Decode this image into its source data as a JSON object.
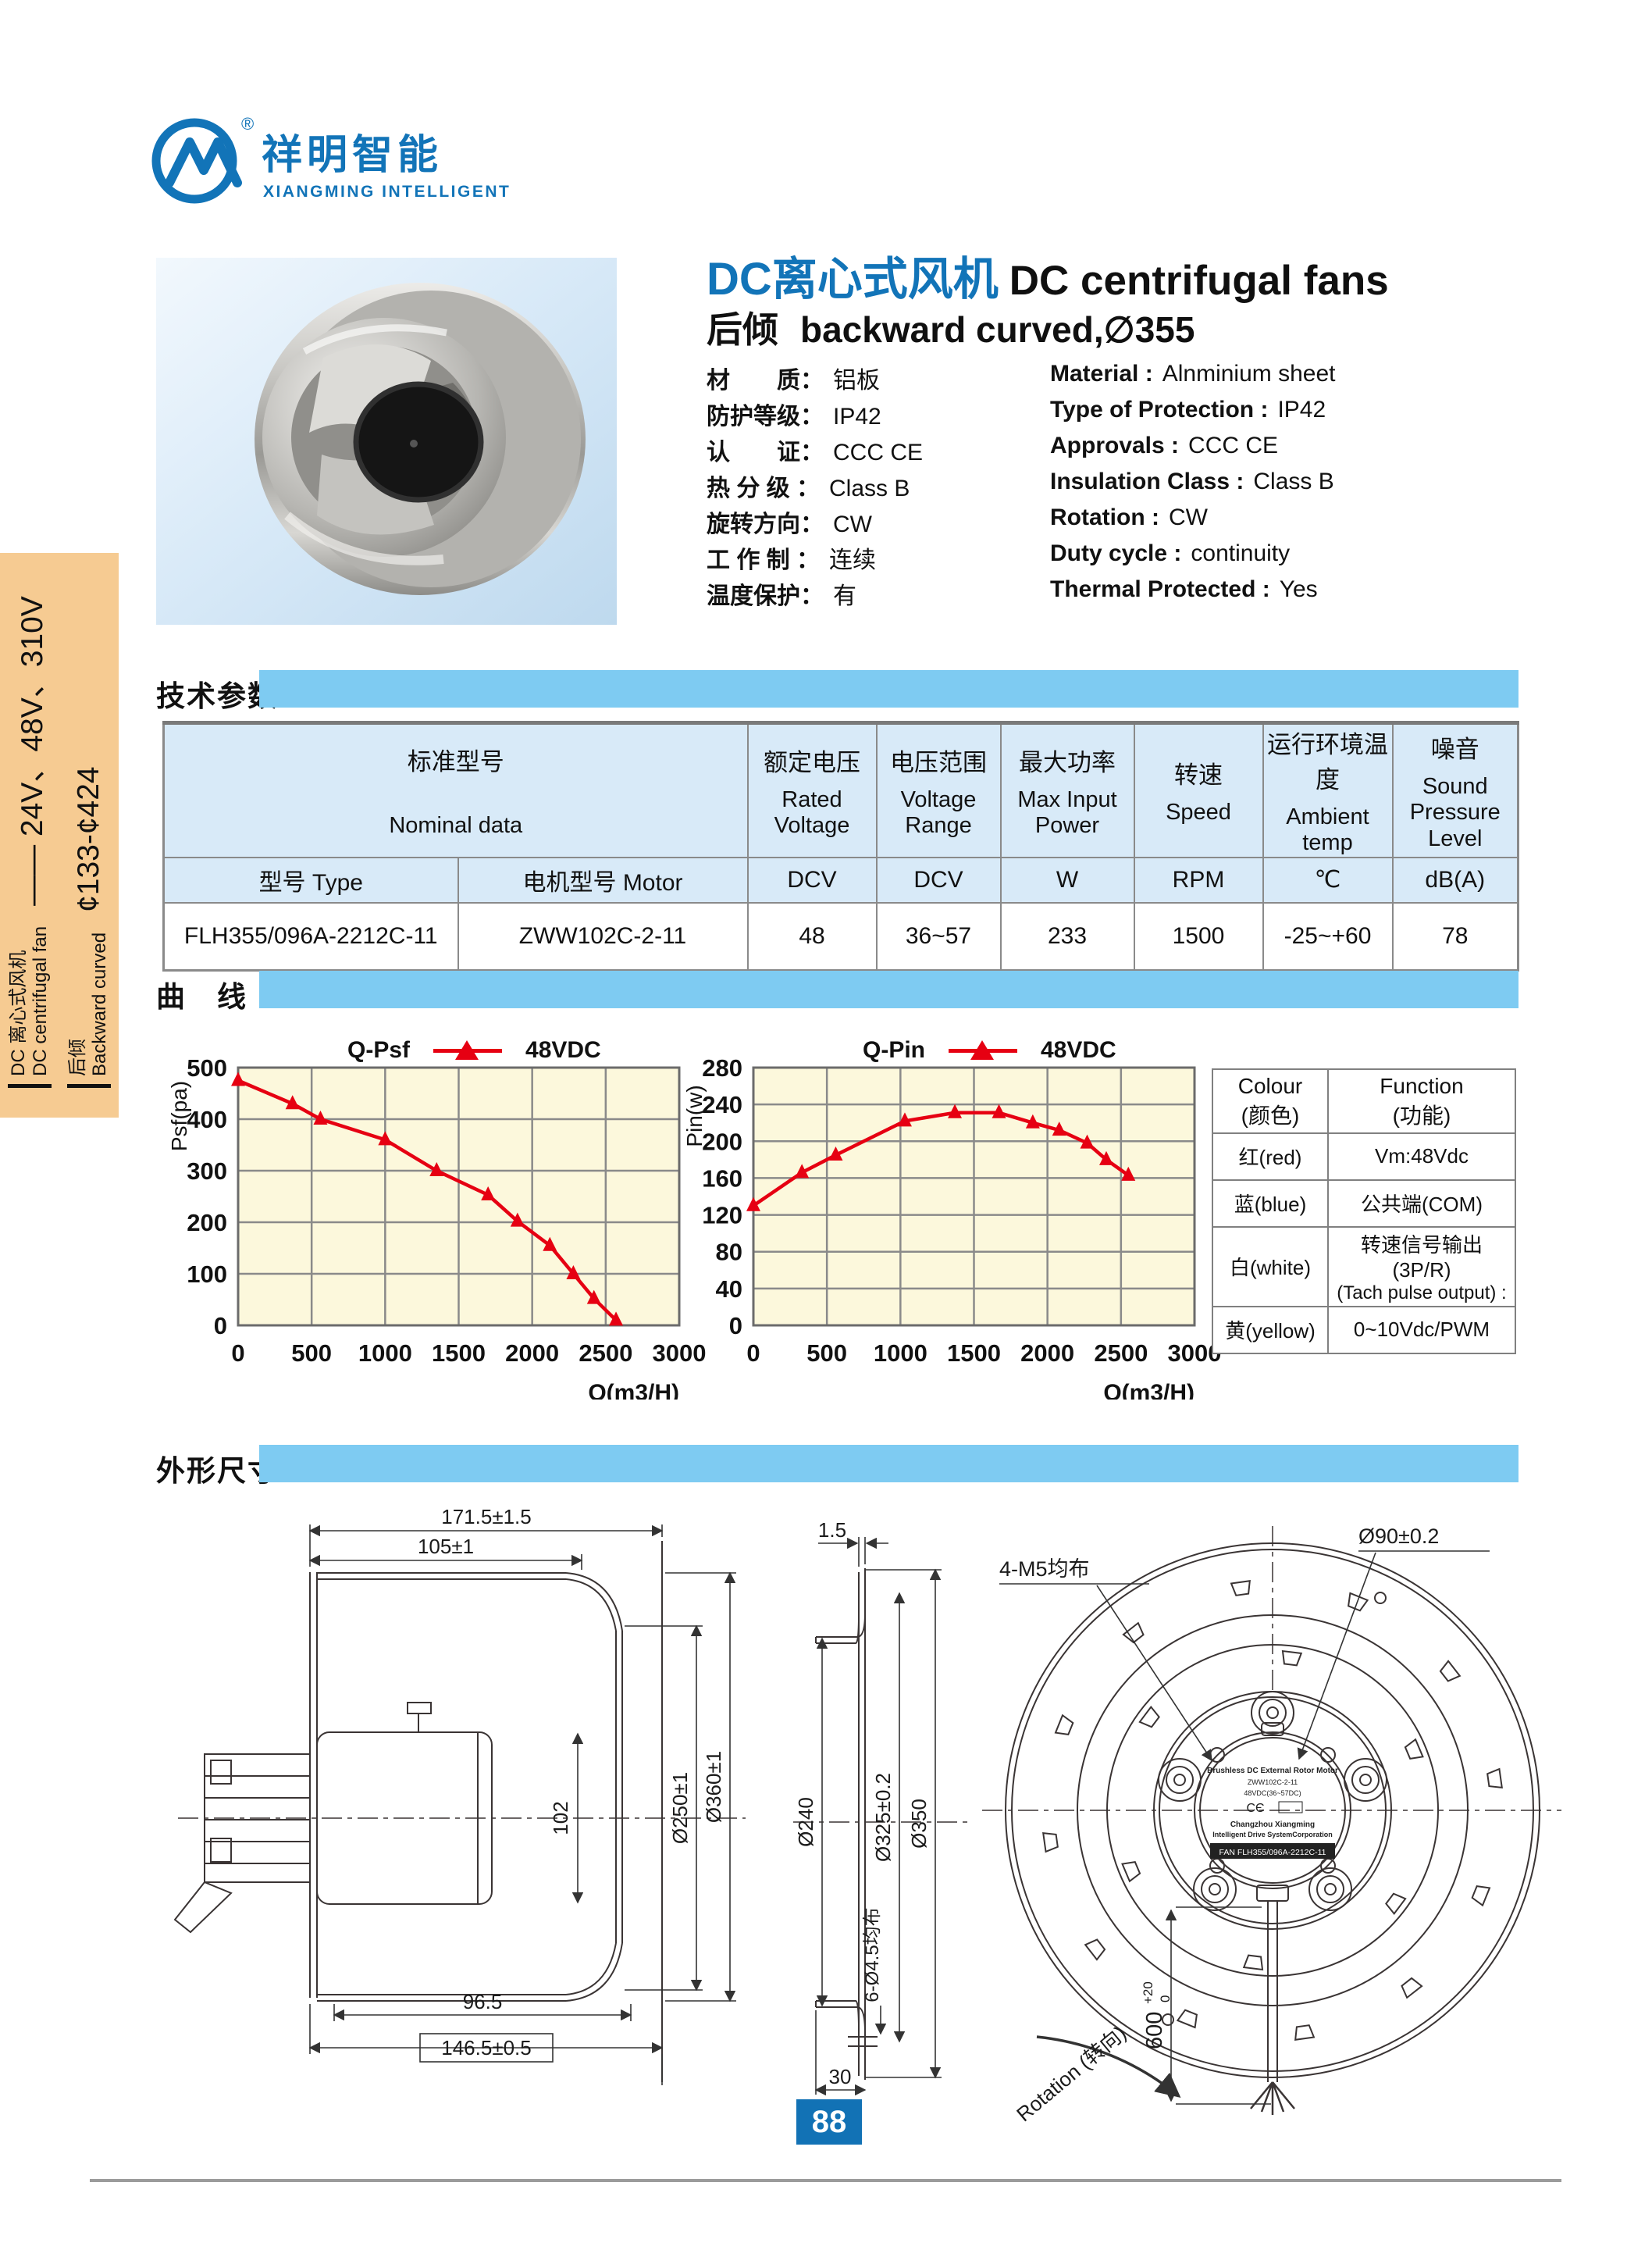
{
  "colors": {
    "accent_blue": "#1274b8",
    "bar_blue": "#7ecbf2",
    "table_header_bg": "#d8eaf8",
    "chart_bg": "#fcf8dc",
    "series_red": "#e60012",
    "sidebar_bg": "#f6cb92",
    "page_box_blue": "#1272b5"
  },
  "logo": {
    "brand_cn": "祥明智能",
    "brand_en": "XIANGMING INTELLIGENT",
    "reg": "®"
  },
  "sidebar": {
    "group1_cn": "DC 离心式风机",
    "group1_en": "DC centrifugal fan",
    "group1_value": "—— 24V、48V、310V",
    "group2_cn": "后倾",
    "group2_en": "Backward curved",
    "group2_value": "¢133-¢424"
  },
  "header": {
    "title_cn": "DC离心式风机",
    "title_en": "DC centrifugal fans",
    "subtitle_cn": "后倾",
    "subtitle_en": "backward curved,∅355"
  },
  "specs": {
    "rows": [
      {
        "cn": "材　　质：",
        "cnv": "铝板",
        "en": "Material :",
        "env": "Alnminium sheet"
      },
      {
        "cn": "防护等级：",
        "cnv": "IP42",
        "en": "Type of Protection :",
        "env": "IP42"
      },
      {
        "cn": "认　　证：",
        "cnv": "CCC CE",
        "en": "Approvals :",
        "env": "CCC CE"
      },
      {
        "cn": "热 分 级 ：",
        "cnv": "Class B",
        "en": "Insulation Class :",
        "env": "Class B"
      },
      {
        "cn": "旋转方向：",
        "cnv": "CW",
        "en": "Rotation :",
        "env": "CW"
      },
      {
        "cn": "工 作 制 ：",
        "cnv": "连续",
        "en": "Duty cycle :",
        "env": "continuity"
      },
      {
        "cn": "温度保护：",
        "cnv": "有",
        "en": "Thermal Protected :",
        "env": "Yes"
      }
    ]
  },
  "sections": {
    "tech": "技术参数",
    "curves": "曲　线",
    "dims": "外形尺寸"
  },
  "table": {
    "nominal_cn": "标准型号",
    "nominal_en": "Nominal data",
    "cols": [
      {
        "cn": "额定电压",
        "en": "Rated Voltage",
        "unit": "DCV"
      },
      {
        "cn": "电压范围",
        "en": "Voltage Range",
        "unit": "DCV"
      },
      {
        "cn": "最大功率",
        "en": "Max Input Power",
        "unit": "W"
      },
      {
        "cn": "转速",
        "en": "Speed",
        "unit": "RPM"
      },
      {
        "cn": "运行环境温度",
        "en": "Ambient temp",
        "unit": "℃"
      },
      {
        "cn": "噪音",
        "en": "Sound Pressure Level",
        "unit": "dB(A)"
      }
    ],
    "type_header": "型号 Type",
    "motor_header": "电机型号 Motor",
    "row": {
      "type": "FLH355/096A-2212C-11",
      "motor": "ZWW102C-2-11",
      "values": [
        "48",
        "36~57",
        "233",
        "1500",
        "-25~+60",
        "78"
      ]
    }
  },
  "chart_data": [
    {
      "type": "line",
      "title": "Q-Psf",
      "legend": "48VDC",
      "xlabel": "Q(m3/H)",
      "ylabel": "Psf(pa)",
      "xlim": [
        0,
        3000
      ],
      "ylim": [
        0,
        500
      ],
      "xticks": [
        0,
        500,
        1000,
        1500,
        2000,
        2500,
        3000
      ],
      "yticks": [
        0,
        100,
        200,
        300,
        400,
        500
      ],
      "x": [
        0,
        370,
        560,
        1000,
        1350,
        1700,
        1900,
        2120,
        2280,
        2420,
        2570
      ],
      "y": [
        475,
        430,
        400,
        360,
        300,
        253,
        202,
        155,
        100,
        52,
        10
      ],
      "grid": true,
      "legend_position": "top"
    },
    {
      "type": "line",
      "title": "Q-Pin",
      "legend": "48VDC",
      "xlabel": "Q(m3/H)",
      "ylabel": "Pin(w)",
      "xlim": [
        0,
        3000
      ],
      "ylim": [
        0,
        280
      ],
      "xticks": [
        0,
        500,
        1000,
        1500,
        2000,
        2500,
        3000
      ],
      "yticks": [
        0,
        40,
        80,
        120,
        160,
        200,
        240,
        280
      ],
      "x": [
        0,
        330,
        560,
        1030,
        1370,
        1670,
        1900,
        2080,
        2270,
        2400,
        2550
      ],
      "y": [
        130,
        166,
        185,
        222,
        231,
        231,
        220,
        212,
        198,
        180,
        163
      ],
      "grid": true,
      "legend_position": "top"
    }
  ],
  "wire_table": {
    "col1_header_top": "Colour",
    "col1_header_bottom": "(颜色)",
    "col2_header_top": "Function",
    "col2_header_bottom": "(功能)",
    "rows": [
      {
        "colour": "红(red)",
        "fn1": "Vm:48Vdc",
        "fn2": ""
      },
      {
        "colour": "蓝(blue)",
        "fn1": "公共端(COM)",
        "fn2": ""
      },
      {
        "colour": "白(white)",
        "fn1": "转速信号输出(3P/R)",
        "fn2": "(Tach pulse output) :"
      },
      {
        "colour": "黄(yellow)",
        "fn1": "0~10Vdc/PWM",
        "fn2": ""
      }
    ]
  },
  "drawing": {
    "left": {
      "d_total": "171.5±1.5",
      "d_inner": "105±1",
      "d_hub": "102",
      "d_d250": "Ø250±1",
      "d_d360": "Ø360±1",
      "d_back": "96.5",
      "d_overall": "146.5±0.5"
    },
    "middle": {
      "d_lip": "1.5",
      "d_d240": "Ø240",
      "d_d325": "Ø325±0.2",
      "d_d350": "Ø350",
      "d_holes": "6-Ø4.5均布",
      "d_depth": "30"
    },
    "right": {
      "d_bolts": "4-M5均布",
      "d_d90": "Ø90±0.2",
      "d_cable": "600",
      "d_cable_tol_up": "+20",
      "d_cable_tol_dn": "0",
      "d_rotation": "Rotation (转向)"
    },
    "motor_label": {
      "l1": "Brushless DC External Rotor Motor",
      "l2": "ZWW102C-2-11",
      "l3": "48VDC(36~57DC)",
      "l4": "Changzhou Xiangming",
      "l5": "Intelligent Drive SystemCorporation",
      "l6": "FAN FLH355/096A-2212C-11"
    }
  },
  "page": {
    "number": "88"
  }
}
